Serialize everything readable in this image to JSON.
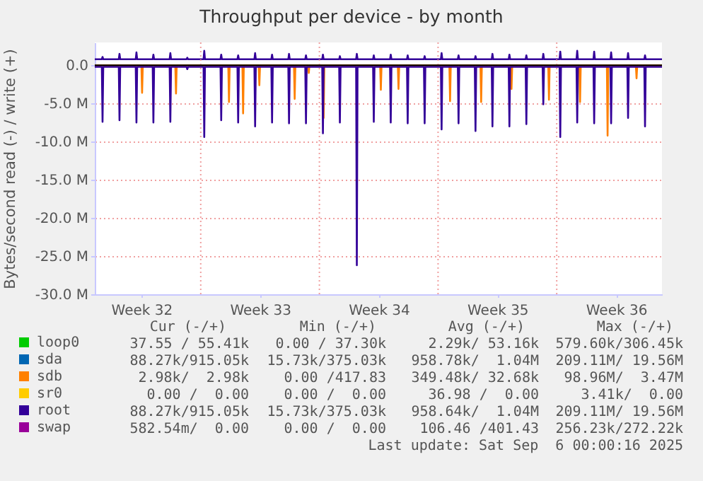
{
  "chart_data": {
    "type": "line",
    "title": "Throughput per device - by month",
    "ylabel": "Bytes/second read (-) / write (+)",
    "x": [
      "2025-08-04T18:00",
      "2025-08-05T04:00",
      "2025-08-05T05:00",
      "2025-08-05T06:00",
      "2025-08-06T04:00",
      "2025-08-06T05:00",
      "2025-08-06T06:00",
      "2025-08-07T04:00",
      "2025-08-07T05:00",
      "2025-08-07T06:00",
      "2025-08-08T04:00",
      "2025-08-08T05:00",
      "2025-08-08T06:00",
      "2025-08-09T04:00",
      "2025-08-09T05:00",
      "2025-08-09T06:00",
      "2025-08-10T04:00",
      "2025-08-10T05:00",
      "2025-08-10T06:00",
      "2025-08-11T04:00",
      "2025-08-11T05:00",
      "2025-08-11T06:00",
      "2025-08-12T04:00",
      "2025-08-12T05:00",
      "2025-08-12T06:00",
      "2025-08-13T04:00",
      "2025-08-13T05:00",
      "2025-08-13T06:00",
      "2025-08-14T04:00",
      "2025-08-14T05:00",
      "2025-08-14T06:00",
      "2025-08-15T04:00",
      "2025-08-15T05:00",
      "2025-08-15T06:00",
      "2025-08-16T04:00",
      "2025-08-16T05:00",
      "2025-08-16T06:00",
      "2025-08-17T04:00",
      "2025-08-17T05:00",
      "2025-08-17T06:00",
      "2025-08-18T04:00",
      "2025-08-18T05:00",
      "2025-08-18T06:00",
      "2025-08-19T04:00",
      "2025-08-19T05:00",
      "2025-08-19T06:00",
      "2025-08-20T04:00",
      "2025-08-20T05:00",
      "2025-08-20T06:00",
      "2025-08-21T04:00",
      "2025-08-21T05:00",
      "2025-08-21T06:00",
      "2025-08-22T04:00",
      "2025-08-22T05:00",
      "2025-08-22T06:00",
      "2025-08-23T04:00",
      "2025-08-23T05:00",
      "2025-08-23T06:00",
      "2025-08-24T04:00",
      "2025-08-24T05:00",
      "2025-08-24T06:00",
      "2025-08-25T04:00",
      "2025-08-25T05:00",
      "2025-08-25T06:00",
      "2025-08-26T04:00",
      "2025-08-26T05:00",
      "2025-08-26T06:00",
      "2025-08-27T04:00",
      "2025-08-27T05:00",
      "2025-08-27T06:00",
      "2025-08-28T04:00",
      "2025-08-28T05:00",
      "2025-08-28T06:00",
      "2025-08-29T04:00",
      "2025-08-29T05:00",
      "2025-08-29T06:00",
      "2025-08-30T04:00",
      "2025-08-30T05:00",
      "2025-08-30T06:00",
      "2025-08-31T04:00",
      "2025-08-31T05:00",
      "2025-08-31T06:00",
      "2025-09-01T04:00",
      "2025-09-01T05:00",
      "2025-09-01T06:00",
      "2025-09-02T04:00",
      "2025-09-02T05:00",
      "2025-09-02T06:00",
      "2025-09-03T04:00",
      "2025-09-03T05:00",
      "2025-09-03T06:00",
      "2025-09-04T04:00",
      "2025-09-04T05:00",
      "2025-09-04T06:00",
      "2025-09-05T04:00",
      "2025-09-05T05:00",
      "2025-09-05T06:00",
      "2025-09-06T04:00",
      "2025-09-06T05:00",
      "2025-09-06T06:00",
      "2025-09-07T05:00"
    ],
    "series": [
      {
        "name": "loop0",
        "color": "#00cc00",
        "values": [
          null,
          null,
          null,
          null,
          null,
          null,
          null,
          null,
          null,
          null,
          null,
          null,
          null,
          null,
          null,
          null,
          null,
          null,
          null,
          null,
          null,
          null,
          null,
          null,
          null,
          null,
          null,
          null,
          null,
          null,
          null,
          null,
          null,
          null,
          null,
          null,
          null,
          null,
          null,
          null,
          null,
          null,
          null,
          null,
          null,
          null,
          null,
          null,
          null,
          null,
          null,
          null,
          null,
          null,
          null,
          null,
          null,
          null,
          null,
          null,
          null,
          null,
          null,
          null,
          null,
          null,
          null,
          null,
          null,
          null,
          null,
          null,
          null,
          null,
          null,
          null,
          null,
          null,
          null,
          null,
          null,
          null,
          null,
          null,
          null,
          null,
          null,
          null,
          null,
          null,
          null,
          null,
          null,
          null,
          null,
          null,
          null,
          null,
          null,
          null,
          null
        ]
      },
      {
        "name": "sda",
        "color": "#0066b3",
        "values": [
          null,
          null,
          null,
          null,
          null,
          null,
          null,
          null,
          null,
          null,
          null,
          null,
          null,
          null,
          null,
          null,
          null,
          null,
          null,
          null,
          null,
          null,
          null,
          null,
          null,
          null,
          null,
          null,
          null,
          null,
          null,
          null,
          null,
          null,
          null,
          null,
          null,
          null,
          null,
          null,
          null,
          null,
          null,
          null,
          null,
          null,
          null,
          null,
          null,
          null,
          null,
          null,
          null,
          null,
          null,
          null,
          null,
          null,
          null,
          null,
          null,
          null,
          null,
          null,
          null,
          null,
          null,
          null,
          null,
          null,
          null,
          null,
          null,
          null,
          null,
          null,
          null,
          null,
          null,
          null,
          null,
          null,
          null,
          null,
          null,
          null,
          null,
          null,
          null,
          null,
          null,
          null,
          null,
          null,
          null,
          null,
          null,
          null,
          null,
          null,
          null
        ]
      },
      {
        "name": "sdb",
        "color": "#ff8000",
        "x": [
          "2025-08-04T18:00",
          "2025-08-07T12:00",
          "2025-08-07T13:00",
          "2025-08-07T14:00",
          "2025-08-09T12:00",
          "2025-08-09T13:00",
          "2025-08-09T14:00",
          "2025-08-12T15:00",
          "2025-08-12T16:00",
          "2025-08-12T17:00",
          "2025-08-13T11:00",
          "2025-08-13T12:00",
          "2025-08-13T13:00",
          "2025-08-14T10:00",
          "2025-08-14T11:00",
          "2025-08-14T12:00",
          "2025-08-16T12:00",
          "2025-08-16T13:00",
          "2025-08-16T14:00",
          "2025-08-17T08:00",
          "2025-08-17T09:00",
          "2025-08-17T10:00",
          "2025-08-18T05:00",
          "2025-08-18T06:00",
          "2025-08-18T07:00",
          "2025-08-21T14:00",
          "2025-08-21T15:00",
          "2025-08-21T16:00",
          "2025-08-22T15:00",
          "2025-08-22T16:00",
          "2025-08-22T17:00",
          "2025-08-25T16:00",
          "2025-08-25T17:00",
          "2025-08-25T18:00",
          "2025-08-27T12:00",
          "2025-08-27T13:00",
          "2025-08-27T14:00",
          "2025-08-29T07:00",
          "2025-08-29T08:00",
          "2025-08-29T09:00",
          "2025-08-31T12:00",
          "2025-08-31T13:00",
          "2025-08-31T14:00",
          "2025-09-02T08:00",
          "2025-09-02T09:00",
          "2025-09-02T10:00",
          "2025-09-03T23:00",
          "2025-09-04T00:00",
          "2025-09-04T01:00",
          "2025-09-05T16:00",
          "2025-09-05T17:00",
          "2025-09-05T18:00",
          "2025-09-07T05:00"
        ],
        "values": [
          0,
          0,
          -3.6,
          0,
          0,
          -3.7,
          0,
          0,
          -4.8,
          0,
          0,
          -6.3,
          0,
          0,
          -2.6,
          0,
          0,
          -4.4,
          0,
          0,
          -1.0,
          0,
          0,
          -6.9,
          0,
          0,
          -3.2,
          0,
          0,
          -3.1,
          0,
          0,
          -4.7,
          0,
          0,
          -4.8,
          0,
          0,
          -3.1,
          0,
          0,
          -4.5,
          0,
          0,
          -4.8,
          0,
          0,
          -9.2,
          0,
          0,
          -1.7,
          0,
          0
        ]
      },
      {
        "name": "sr0",
        "color": "#ffcc00",
        "values": [
          null,
          null,
          null,
          null,
          null,
          null,
          null,
          null,
          null,
          null,
          null,
          null,
          null,
          null,
          null,
          null,
          null,
          null,
          null,
          null,
          null,
          null,
          null,
          null,
          null,
          null,
          null,
          null,
          null,
          null,
          null,
          null,
          null,
          null,
          null,
          null,
          null,
          null,
          null,
          null,
          null,
          null,
          null,
          null,
          null,
          null,
          null,
          null,
          null,
          null,
          null,
          null,
          null,
          null,
          null,
          null,
          null,
          null,
          null,
          null,
          null,
          null,
          null,
          null,
          null,
          null,
          null,
          null,
          null,
          null,
          null,
          null,
          null,
          null,
          null,
          null,
          null,
          null,
          null,
          null,
          null,
          null,
          null,
          null,
          null,
          null,
          null,
          null,
          null,
          null,
          null,
          null,
          null,
          null,
          null,
          null,
          null,
          null,
          null,
          null,
          null
        ]
      },
      {
        "name": "root",
        "color": "#330099",
        "values": [
          -0.2,
          -0.2,
          -7.4,
          -0.2,
          -0.2,
          -7.2,
          -0.2,
          -0.2,
          -7.5,
          -0.2,
          -0.2,
          -7.5,
          -0.2,
          -0.2,
          -7.4,
          -0.2,
          -0.2,
          -0.5,
          -0.2,
          -0.2,
          -9.4,
          -0.2,
          -0.2,
          -7.2,
          -0.2,
          -0.2,
          -7.5,
          -0.2,
          -0.2,
          -8.0,
          -0.2,
          -0.2,
          -7.5,
          -0.2,
          -0.2,
          -7.6,
          -0.2,
          -0.2,
          -7.6,
          -0.2,
          -0.2,
          -8.9,
          -0.2,
          -0.2,
          -7.5,
          -0.2,
          -0.2,
          -26.2,
          -0.2,
          -0.2,
          -7.4,
          -0.2,
          -0.2,
          -7.5,
          -0.2,
          -0.2,
          -7.6,
          -0.2,
          -0.2,
          -7.6,
          -0.2,
          -0.2,
          -8.4,
          -0.2,
          -0.2,
          -7.6,
          -0.2,
          -0.2,
          -8.6,
          -0.2,
          -0.2,
          -8.0,
          -0.2,
          -0.2,
          -8.0,
          -0.2,
          -0.2,
          -7.7,
          -0.2,
          -0.2,
          -5.1,
          -0.2,
          -0.2,
          -9.4,
          -0.2,
          -0.2,
          -7.5,
          -0.2,
          -0.2,
          -7.6,
          -0.2,
          -0.2,
          -7.6,
          -0.2,
          -0.2,
          -6.9,
          -0.2,
          -0.2,
          -8.0,
          -0.2,
          -0.2
        ]
      },
      {
        "color": "#330099",
        "values": [
          0.8,
          0.8,
          1.1,
          0.8,
          0.8,
          1.5,
          0.8,
          0.8,
          1.7,
          0.8,
          0.8,
          1.4,
          0.8,
          0.8,
          1.6,
          0.8,
          0.8,
          1.0,
          0.8,
          0.8,
          1.9,
          0.8,
          0.8,
          1.4,
          0.8,
          0.8,
          1.3,
          0.8,
          0.8,
          1.6,
          0.8,
          0.8,
          1.4,
          0.8,
          0.8,
          1.5,
          0.8,
          0.8,
          1.3,
          0.8,
          0.8,
          1.4,
          0.8,
          0.8,
          1.2,
          0.8,
          0.8,
          1.5,
          0.8,
          0.8,
          1.3,
          0.8,
          0.8,
          1.4,
          0.8,
          0.8,
          1.3,
          0.8,
          0.8,
          1.2,
          0.8,
          0.8,
          1.6,
          0.8,
          0.8,
          1.3,
          0.8,
          0.8,
          1.2,
          0.8,
          0.8,
          1.5,
          0.8,
          0.8,
          1.4,
          0.8,
          0.8,
          1.3,
          0.8,
          0.8,
          1.5,
          0.8,
          0.8,
          1.8,
          0.8,
          0.8,
          1.9,
          0.8,
          0.8,
          1.8,
          0.8,
          0.8,
          1.7,
          0.8,
          0.8,
          1.6,
          0.8,
          0.8,
          1.3,
          0.8,
          0.8
        ]
      },
      {
        "name": "swap",
        "color": "#990099",
        "values": [
          null,
          null,
          null,
          null,
          null,
          null,
          null,
          null,
          null,
          null,
          null,
          null,
          null,
          null,
          null,
          null,
          null,
          null,
          null,
          null,
          null,
          null,
          null,
          null,
          null,
          null,
          null,
          null,
          null,
          null,
          null,
          null,
          null,
          null,
          null,
          null,
          null,
          null,
          null,
          null,
          null,
          null,
          null,
          null,
          null,
          null,
          null,
          null,
          null,
          null,
          null,
          null,
          null,
          null,
          null,
          null,
          null,
          null,
          null,
          null,
          null,
          null,
          null,
          null,
          null,
          null,
          null,
          null,
          null,
          null,
          null,
          null,
          null,
          null,
          null,
          null,
          null,
          null,
          null,
          null,
          null,
          null,
          null,
          null,
          null,
          null,
          null,
          null,
          null,
          null,
          null,
          null,
          null,
          null,
          null,
          null,
          null,
          null,
          null,
          null,
          null
        ]
      }
    ],
    "xlim": [
      "2025-08-04T18:00",
      "2025-09-07T05:00"
    ],
    "xticks": [
      {
        "value": "2025-08-07T12:00",
        "label": "Week 32"
      },
      {
        "value": "2025-08-14T12:00",
        "label": "Week 33"
      },
      {
        "value": "2025-08-21T12:00",
        "label": "Week 34"
      },
      {
        "value": "2025-08-28T12:00",
        "label": "Week 35"
      },
      {
        "value": "2025-09-04T12:00",
        "label": "Week 36"
      }
    ],
    "ylim": [
      -30,
      3
    ],
    "yticks": [
      {
        "value": -30,
        "label": "-30.0 M"
      },
      {
        "value": -25,
        "label": "-25.0 M"
      },
      {
        "value": -20,
        "label": "-20.0 M"
      },
      {
        "value": -15,
        "label": "-15.0 M"
      },
      {
        "value": -10,
        "label": "-10.0 M"
      },
      {
        "value": -5,
        "label": "-5.0 M"
      },
      {
        "value": 0,
        "label": "0.0"
      }
    ],
    "ref_lines": [
      {
        "axis": "x",
        "value": "2025-08-11T00:00",
        "color": "#f0a0a0",
        "line_style": "dotted"
      },
      {
        "axis": "x",
        "value": "2025-08-18T00:00",
        "color": "#f0a0a0",
        "line_style": "dotted"
      },
      {
        "axis": "x",
        "value": "2025-08-25T00:00",
        "color": "#f0a0a0",
        "line_style": "dotted"
      },
      {
        "axis": "x",
        "value": "2025-09-01T00:00",
        "color": "#f0a0a0",
        "line_style": "dotted"
      },
      {
        "axis": "y",
        "value": 0,
        "color": "#000000",
        "line_style": "solid"
      }
    ],
    "grid": "y",
    "legend": "bottom left",
    "annotations": [
      "Cur (-/+)",
      "Min (-/+)",
      "Avg (-/+)",
      "Max (-/+)",
      "37.55 / 55.41k",
      "0.00 / 37.30k",
      "2.29k/ 53.16k",
      "579.60k/306.45k",
      "88.27k/915.05k",
      "15.73k/375.03k",
      "958.78k/  1.04M",
      "209.11M/ 19.56M",
      "2.98k/  2.98k",
      "0.00 /417.83",
      "349.48k/ 32.68k",
      "98.96M/  3.47M",
      "0.00 /  0.00",
      "0.00 /  0.00",
      "36.98 /  0.00",
      "3.41k/  0.00",
      "88.27k/915.05k",
      "15.73k/375.03k",
      "958.64k/  1.04M",
      "209.11M/ 19.56M",
      "582.54m/  0.00",
      "0.00 /  0.00",
      "106.46 /401.43",
      "256.23k/272.22k",
      "Last update: Sat Sep  6 00:00:16 2025"
    ]
  }
}
